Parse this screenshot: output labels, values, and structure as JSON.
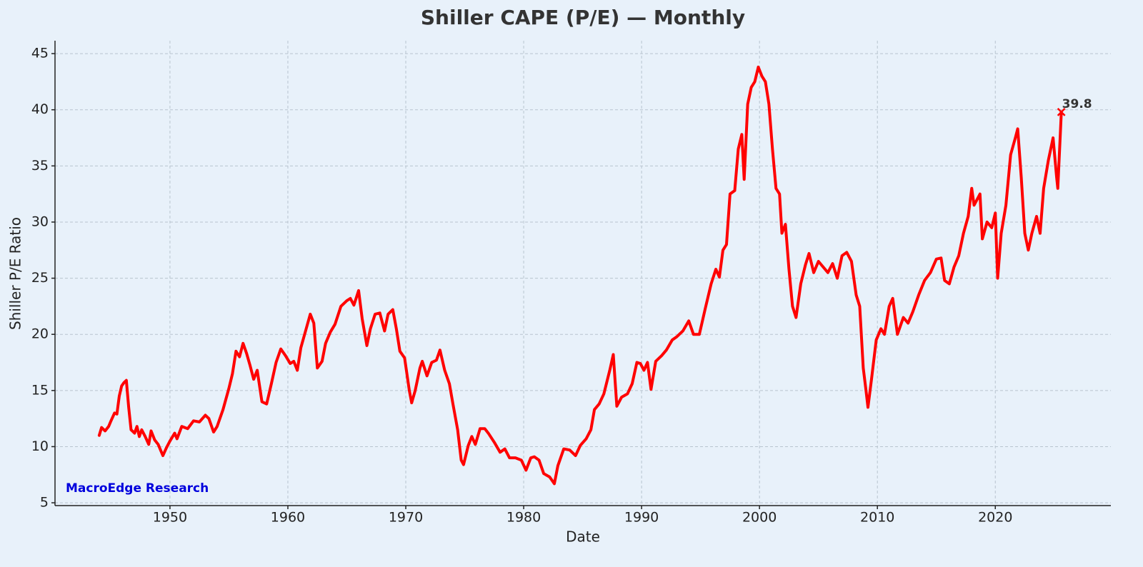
{
  "chart_data": {
    "type": "line",
    "title": "Shiller CAPE (P/E) — Monthly",
    "xlabel": "Date",
    "ylabel": "Shiller P/E Ratio",
    "watermark": "MacroEdge Research",
    "color": "#ff0000",
    "grid": true,
    "xlim": [
      1940.25,
      2029.8
    ],
    "ylim": [
      4.75,
      46.15
    ],
    "xticks": [
      1950,
      1960,
      1970,
      1980,
      1990,
      2000,
      2010,
      2020
    ],
    "yticks": [
      5,
      10,
      15,
      20,
      25,
      30,
      35,
      40,
      45
    ],
    "x": [
      1944.0,
      1944.2,
      1944.5,
      1944.8,
      1945.0,
      1945.3,
      1945.5,
      1945.7,
      1945.9,
      1946.1,
      1946.3,
      1946.5,
      1946.7,
      1947.0,
      1947.2,
      1947.4,
      1947.6,
      1947.9,
      1948.2,
      1948.4,
      1948.7,
      1949.0,
      1949.4,
      1949.7,
      1950.0,
      1950.4,
      1950.6,
      1951.0,
      1951.5,
      1952.0,
      1952.5,
      1953.0,
      1953.3,
      1953.7,
      1954.0,
      1954.5,
      1955.0,
      1955.3,
      1955.6,
      1955.9,
      1956.2,
      1956.5,
      1956.8,
      1957.1,
      1957.4,
      1957.8,
      1958.2,
      1958.6,
      1959.0,
      1959.4,
      1959.8,
      1960.2,
      1960.5,
      1960.8,
      1961.1,
      1961.5,
      1961.9,
      1962.2,
      1962.5,
      1962.9,
      1963.2,
      1963.6,
      1964.0,
      1964.5,
      1965.0,
      1965.3,
      1965.6,
      1966.0,
      1966.3,
      1966.7,
      1967.0,
      1967.4,
      1967.8,
      1968.2,
      1968.5,
      1968.9,
      1969.2,
      1969.5,
      1969.9,
      1970.3,
      1970.5,
      1970.8,
      1971.2,
      1971.4,
      1971.8,
      1972.2,
      1972.6,
      1972.9,
      1973.3,
      1973.7,
      1974.0,
      1974.4,
      1974.7,
      1974.9,
      1975.3,
      1975.6,
      1975.9,
      1976.3,
      1976.7,
      1977.0,
      1977.5,
      1978.0,
      1978.4,
      1978.8,
      1979.3,
      1979.8,
      1980.2,
      1980.6,
      1980.9,
      1981.3,
      1981.7,
      1982.2,
      1982.6,
      1982.9,
      1983.4,
      1983.9,
      1984.4,
      1984.8,
      1985.3,
      1985.7,
      1986.0,
      1986.4,
      1986.8,
      1987.3,
      1987.6,
      1987.9,
      1988.3,
      1988.8,
      1989.2,
      1989.6,
      1989.9,
      1990.2,
      1990.5,
      1990.8,
      1991.2,
      1991.7,
      1992.1,
      1992.6,
      1993.0,
      1993.5,
      1994.0,
      1994.4,
      1994.9,
      1995.4,
      1995.9,
      1996.3,
      1996.6,
      1996.9,
      1997.2,
      1997.5,
      1997.9,
      1998.2,
      1998.5,
      1998.7,
      1999.0,
      1999.3,
      1999.6,
      1999.9,
      2000.2,
      2000.5,
      2000.8,
      2001.1,
      2001.4,
      2001.7,
      2001.9,
      2002.2,
      2002.5,
      2002.8,
      2003.1,
      2003.5,
      2003.9,
      2004.2,
      2004.6,
      2005.0,
      2005.4,
      2005.8,
      2006.2,
      2006.6,
      2007.0,
      2007.4,
      2007.8,
      2008.2,
      2008.5,
      2008.8,
      2009.0,
      2009.2,
      2009.5,
      2009.9,
      2010.3,
      2010.6,
      2011.0,
      2011.3,
      2011.7,
      2012.2,
      2012.6,
      2013.0,
      2013.5,
      2014.0,
      2014.5,
      2015.0,
      2015.4,
      2015.7,
      2016.1,
      2016.5,
      2016.9,
      2017.3,
      2017.7,
      2018.0,
      2018.2,
      2018.7,
      2018.9,
      2019.3,
      2019.7,
      2020.0,
      2020.2,
      2020.5,
      2020.9,
      2021.3,
      2021.7,
      2021.9,
      2022.2,
      2022.5,
      2022.8,
      2023.1,
      2023.5,
      2023.8,
      2024.1,
      2024.5,
      2024.9,
      2025.2,
      2025.3,
      2025.6
    ],
    "values": [
      11.0,
      11.7,
      11.4,
      11.8,
      12.3,
      13.0,
      12.9,
      14.5,
      15.4,
      15.7,
      15.9,
      13.5,
      11.5,
      11.2,
      11.8,
      10.9,
      11.5,
      10.9,
      10.2,
      11.4,
      10.6,
      10.2,
      9.2,
      9.9,
      10.5,
      11.2,
      10.7,
      11.8,
      11.6,
      12.3,
      12.2,
      12.8,
      12.5,
      11.3,
      11.8,
      13.3,
      15.2,
      16.5,
      18.5,
      18.0,
      19.2,
      18.3,
      17.2,
      16.0,
      16.8,
      14.0,
      13.8,
      15.6,
      17.5,
      18.7,
      18.1,
      17.4,
      17.6,
      16.8,
      18.8,
      20.3,
      21.8,
      21.0,
      17.0,
      17.6,
      19.2,
      20.2,
      20.9,
      22.5,
      23.0,
      23.2,
      22.6,
      23.9,
      21.4,
      19.0,
      20.5,
      21.8,
      21.9,
      20.3,
      21.8,
      22.2,
      20.5,
      18.5,
      17.9,
      15.0,
      13.9,
      15.0,
      17.0,
      17.6,
      16.3,
      17.5,
      17.7,
      18.6,
      16.8,
      15.6,
      13.8,
      11.5,
      8.8,
      8.4,
      10.1,
      10.9,
      10.2,
      11.6,
      11.6,
      11.2,
      10.4,
      9.5,
      9.8,
      9.0,
      9.0,
      8.8,
      7.9,
      9.0,
      9.1,
      8.8,
      7.6,
      7.3,
      6.7,
      8.3,
      9.8,
      9.7,
      9.2,
      10.1,
      10.7,
      11.5,
      13.3,
      13.8,
      14.7,
      16.8,
      18.2,
      13.6,
      14.4,
      14.7,
      15.6,
      17.5,
      17.4,
      16.8,
      17.5,
      15.1,
      17.6,
      18.1,
      18.6,
      19.5,
      19.8,
      20.3,
      21.2,
      20.0,
      20.0,
      22.3,
      24.5,
      25.8,
      25.1,
      27.5,
      28.0,
      32.5,
      32.8,
      36.5,
      37.8,
      33.8,
      40.5,
      42.0,
      42.5,
      43.8,
      43.0,
      42.5,
      40.5,
      36.5,
      33.0,
      32.5,
      29.0,
      29.8,
      25.8,
      22.5,
      21.5,
      24.5,
      26.2,
      27.2,
      25.5,
      26.5,
      26.0,
      25.5,
      26.3,
      25.0,
      27.0,
      27.3,
      26.5,
      23.5,
      22.5,
      17.0,
      15.3,
      13.5,
      16.0,
      19.5,
      20.5,
      20.0,
      22.5,
      23.2,
      20.0,
      21.5,
      21.0,
      22.0,
      23.5,
      24.8,
      25.5,
      26.7,
      26.8,
      24.8,
      24.5,
      26.0,
      27.0,
      29.0,
      30.5,
      33.0,
      31.5,
      32.5,
      28.5,
      30.0,
      29.5,
      30.8,
      25.0,
      29.0,
      31.5,
      36.0,
      37.5,
      38.3,
      34.0,
      29.0,
      27.5,
      29.0,
      30.5,
      29.0,
      33.0,
      35.5,
      37.5,
      34.0,
      33.0,
      39.8
    ]
  }
}
